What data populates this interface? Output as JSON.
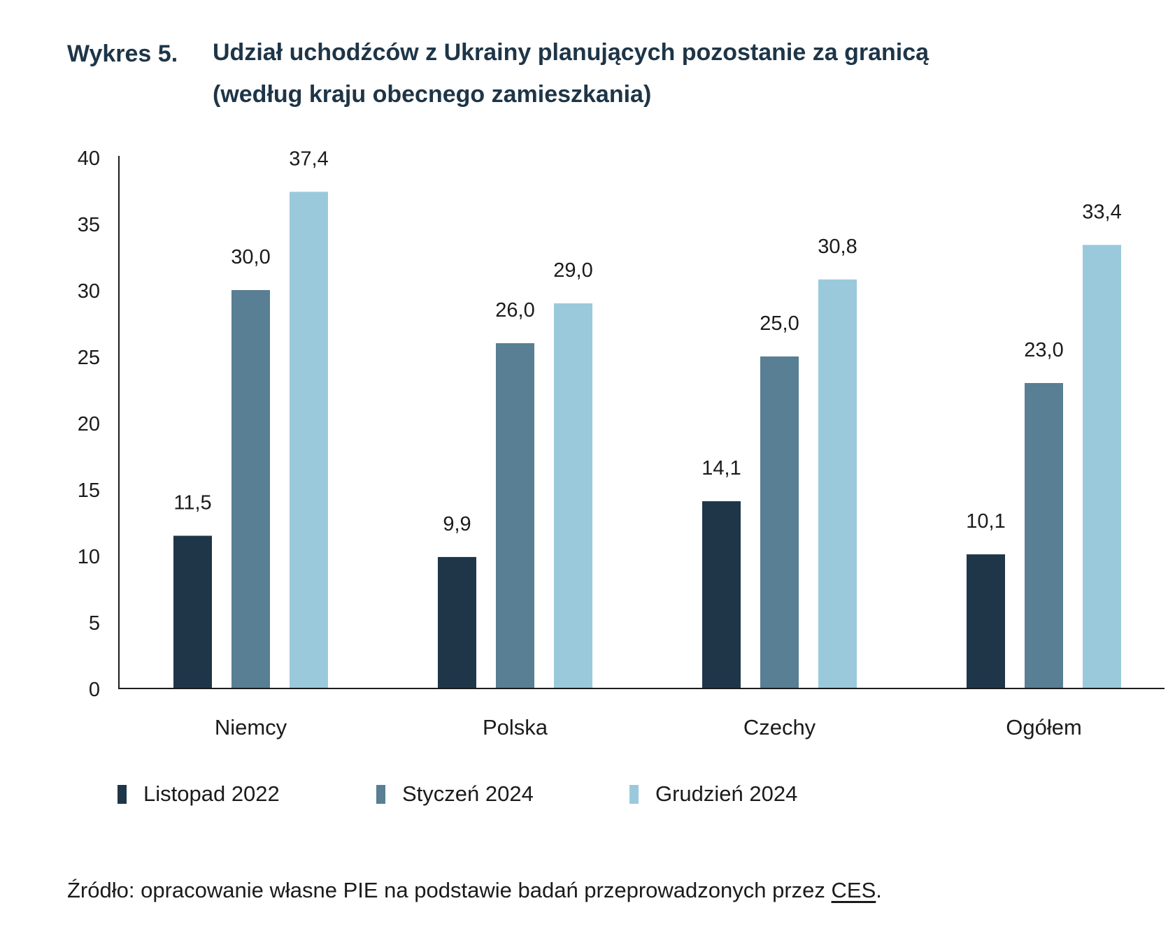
{
  "header": {
    "label": "Wykres 5.",
    "title_line1": "Udział uchodźców z Ukrainy planujących pozostanie za granicą",
    "title_line2": "(według kraju obecnego zamieszkania)"
  },
  "chart_data": {
    "type": "bar",
    "categories": [
      "Niemcy",
      "Polska",
      "Czechy",
      "Ogółem"
    ],
    "series": [
      {
        "name": "Listopad 2022",
        "color": "#1f3649",
        "values": [
          11.5,
          9.9,
          14.1,
          10.1
        ],
        "labels": [
          "11,5",
          "9,9",
          "14,1",
          "10,1"
        ]
      },
      {
        "name": "Styczeń 2024",
        "color": "#587f93",
        "values": [
          30.0,
          26.0,
          25.0,
          23.0
        ],
        "labels": [
          "30,0",
          "26,0",
          "25,0",
          "23,0"
        ]
      },
      {
        "name": "Grudzień 2024",
        "color": "#9bc9dc",
        "values": [
          37.4,
          29.0,
          30.8,
          33.4
        ],
        "labels": [
          "37,4",
          "29,0",
          "30,8",
          "33,4"
        ]
      }
    ],
    "yticks": [
      "0",
      "5",
      "10",
      "15",
      "20",
      "25",
      "30",
      "35",
      "40"
    ],
    "ylim": [
      0,
      40
    ],
    "grid": false,
    "legend_position": "bottom",
    "title": "Udział uchodźców z Ukrainy planujących pozostanie za granicą (według kraju obecnego zamieszkania)"
  },
  "footer": {
    "source_prefix": "Źródło: opracowanie własne PIE na podstawie badań przeprowadzonych przez ",
    "source_link": "CES",
    "source_suffix": "."
  }
}
